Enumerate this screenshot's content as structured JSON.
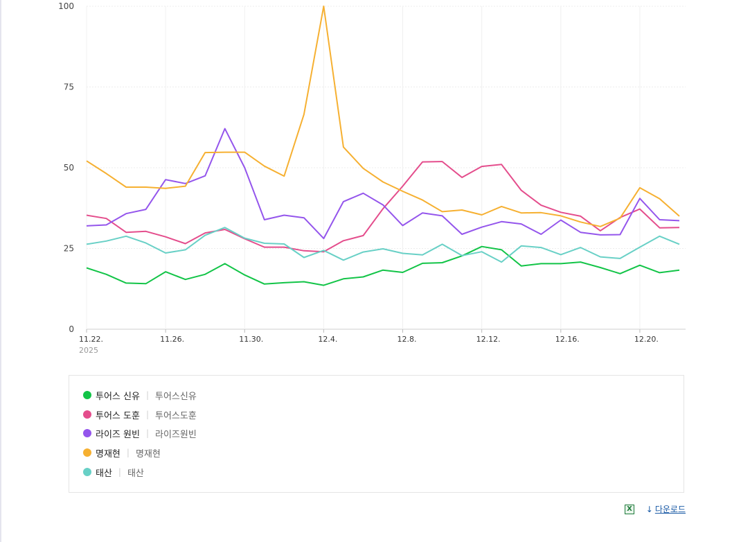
{
  "chart_data": {
    "type": "line",
    "x": [
      "11.22.",
      "11.23.",
      "11.24.",
      "11.25.",
      "11.26.",
      "11.27.",
      "11.28.",
      "11.29.",
      "11.30.",
      "12.1.",
      "12.2.",
      "12.3.",
      "12.4.",
      "12.5.",
      "12.6.",
      "12.7.",
      "12.8.",
      "12.9.",
      "12.10.",
      "12.11.",
      "12.12.",
      "12.13.",
      "12.14.",
      "12.15.",
      "12.16.",
      "12.17.",
      "12.18.",
      "12.19.",
      "12.20.",
      "12.21.",
      "12.22."
    ],
    "x_tick_labels": [
      "11.22.",
      "11.26.",
      "11.30.",
      "12.4.",
      "12.8.",
      "12.12.",
      "12.16.",
      "12.20."
    ],
    "x_year_label": "2025",
    "ylim": [
      0,
      100
    ],
    "y_ticks": [
      "0",
      "25",
      "50",
      "75",
      "100"
    ],
    "grid": true,
    "series": [
      {
        "name": "투어스 신유",
        "keyword": "투어스신유",
        "color": "#12c447",
        "values": [
          19,
          17,
          14.3,
          14.1,
          17.8,
          15.4,
          17,
          20.3,
          16.8,
          14,
          14.4,
          14.7,
          13.6,
          15.6,
          16.2,
          18.3,
          17.6,
          20.4,
          20.6,
          22.7,
          25.6,
          24.6,
          19.6,
          20.3,
          20.3,
          20.8,
          19.1,
          17.2,
          19.8,
          17.5,
          18.3
        ]
      },
      {
        "name": "투어스 도훈",
        "keyword": "투어스도훈",
        "color": "#e44d8c",
        "values": [
          35.3,
          34.3,
          30,
          30.3,
          28.6,
          26.5,
          29.8,
          30.9,
          28,
          25.4,
          25.4,
          24.3,
          24,
          27.4,
          29,
          37.3,
          44.3,
          51.8,
          51.9,
          47,
          50.4,
          51,
          43,
          38.4,
          36.2,
          35,
          30.5,
          34.6,
          37.2,
          31.4,
          31.5
        ]
      },
      {
        "name": "라이즈 원빈",
        "keyword": "라이즈원빈",
        "color": "#9455ec",
        "values": [
          32,
          32.3,
          35.8,
          37.1,
          46.3,
          45.1,
          47.5,
          62.1,
          50,
          33.9,
          35.3,
          34.5,
          28.1,
          39.5,
          42.1,
          38.5,
          32.1,
          36,
          35.1,
          29.4,
          31.6,
          33.3,
          32.6,
          29.4,
          33.8,
          30,
          29.2,
          29.3,
          40.5,
          33.9,
          33.6
        ]
      },
      {
        "name": "명재현",
        "keyword": "명재현",
        "color": "#f6b031",
        "values": [
          52.1,
          48.2,
          44,
          44,
          43.6,
          44.3,
          54.7,
          54.8,
          54.8,
          50.5,
          47.4,
          66.5,
          100,
          56.4,
          49.8,
          45.6,
          42.7,
          40,
          36.4,
          36.9,
          35.4,
          38,
          36,
          36.1,
          35.1,
          33.2,
          31.8,
          34.4,
          43.8,
          40.4,
          35
        ]
      },
      {
        "name": "태산",
        "keyword": "태산",
        "color": "#68d0c6",
        "values": [
          26.3,
          27.3,
          28.8,
          26.7,
          23.6,
          24.6,
          29.1,
          31.5,
          28.2,
          26.6,
          26.4,
          22.2,
          24.4,
          21.4,
          23.9,
          24.9,
          23.5,
          23,
          26.3,
          22.8,
          24,
          20.8,
          25.8,
          25.3,
          23.1,
          25.3,
          22.4,
          21.9,
          25.4,
          28.8,
          26.3
        ]
      }
    ]
  },
  "download": {
    "label": "다운로드",
    "icon": "download-arrow-icon",
    "excel_icon": "excel-icon"
  }
}
